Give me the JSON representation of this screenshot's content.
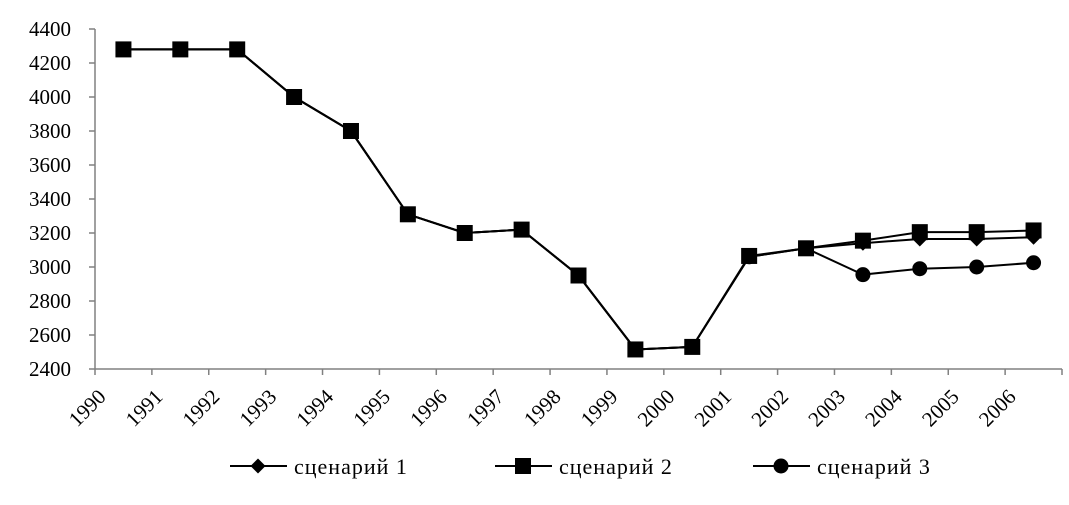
{
  "chart_data": {
    "type": "line",
    "x": [
      "1990",
      "1991",
      "1992",
      "1993",
      "1994",
      "1995",
      "1996",
      "1997",
      "1998",
      "1999",
      "2000",
      "2001",
      "2002",
      "2003",
      "2004",
      "2005",
      "2006"
    ],
    "ylim": [
      2400,
      4400
    ],
    "yticks": [
      2400,
      2600,
      2800,
      3000,
      3200,
      3400,
      3600,
      3800,
      4000,
      4200,
      4400
    ],
    "grid": false,
    "legend_position": "bottom",
    "series": [
      {
        "name": "сценарий 1",
        "marker": "diamond",
        "values": [
          4280,
          4280,
          4280,
          4000,
          3800,
          3310,
          3200,
          3220,
          2950,
          2515,
          2530,
          3060,
          3110,
          3140,
          3165,
          3165,
          3175
        ]
      },
      {
        "name": "сценарий 2",
        "marker": "square",
        "values": [
          4280,
          4280,
          4280,
          4000,
          3800,
          3310,
          3200,
          3220,
          2950,
          2515,
          2530,
          3065,
          3110,
          3155,
          3205,
          3205,
          3215
        ]
      },
      {
        "name": "сценарий 3",
        "marker": "circle",
        "values": [
          4280,
          4280,
          4280,
          4000,
          3800,
          3310,
          3200,
          3220,
          2950,
          2515,
          2530,
          3060,
          3110,
          2955,
          2990,
          3000,
          3025
        ]
      }
    ],
    "colors": {
      "line": "#000000",
      "axis": "#808080",
      "background": "#ffffff"
    }
  }
}
